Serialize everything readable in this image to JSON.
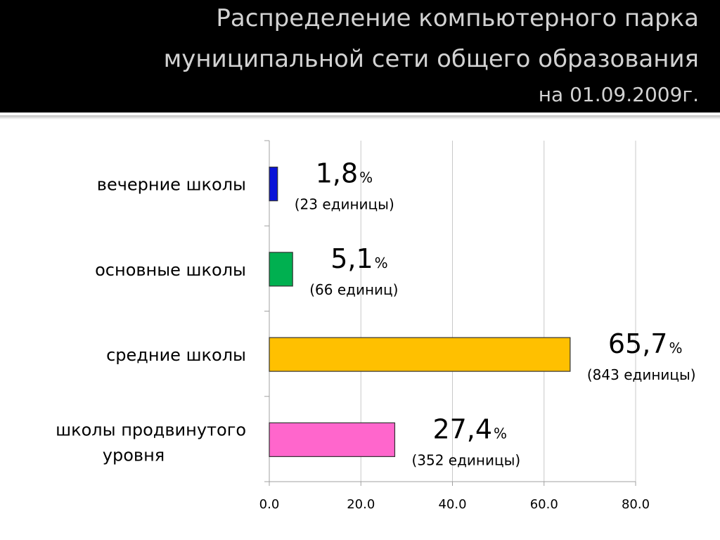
{
  "header": {
    "title_line1": "Распределение компьютерного парка",
    "title_line2": "муниципальной сети общего образования",
    "subtitle": "на 01.09.2009г."
  },
  "colors": {
    "header_bg": "#000000",
    "header_text": "#d2d2d2",
    "grid": "#c8c8c8"
  },
  "chart_data": {
    "type": "bar",
    "orientation": "horizontal",
    "categories": [
      [
        "вечерние школы"
      ],
      [
        "основные школы"
      ],
      [
        "средние школы"
      ],
      [
        "школы продвинутого",
        "уровня"
      ]
    ],
    "values": [
      1.8,
      5.1,
      65.7,
      27.4
    ],
    "value_labels": [
      "1,8",
      "5,1",
      "65,7",
      "27,4"
    ],
    "percent_sign": "%",
    "counts": [
      "(23 единицы)",
      "(66 единиц)",
      "(843 единицы)",
      "(352 единицы)"
    ],
    "bar_colors": [
      "#0a14d8",
      "#00b050",
      "#ffc000",
      "#ff66cc"
    ],
    "xlim": [
      0,
      80
    ],
    "xticks": [
      0,
      20,
      40,
      60,
      80
    ],
    "xtick_labels": [
      "0.0",
      "20.0",
      "40.0",
      "60.0",
      "80.0"
    ],
    "grid": "vertical"
  }
}
